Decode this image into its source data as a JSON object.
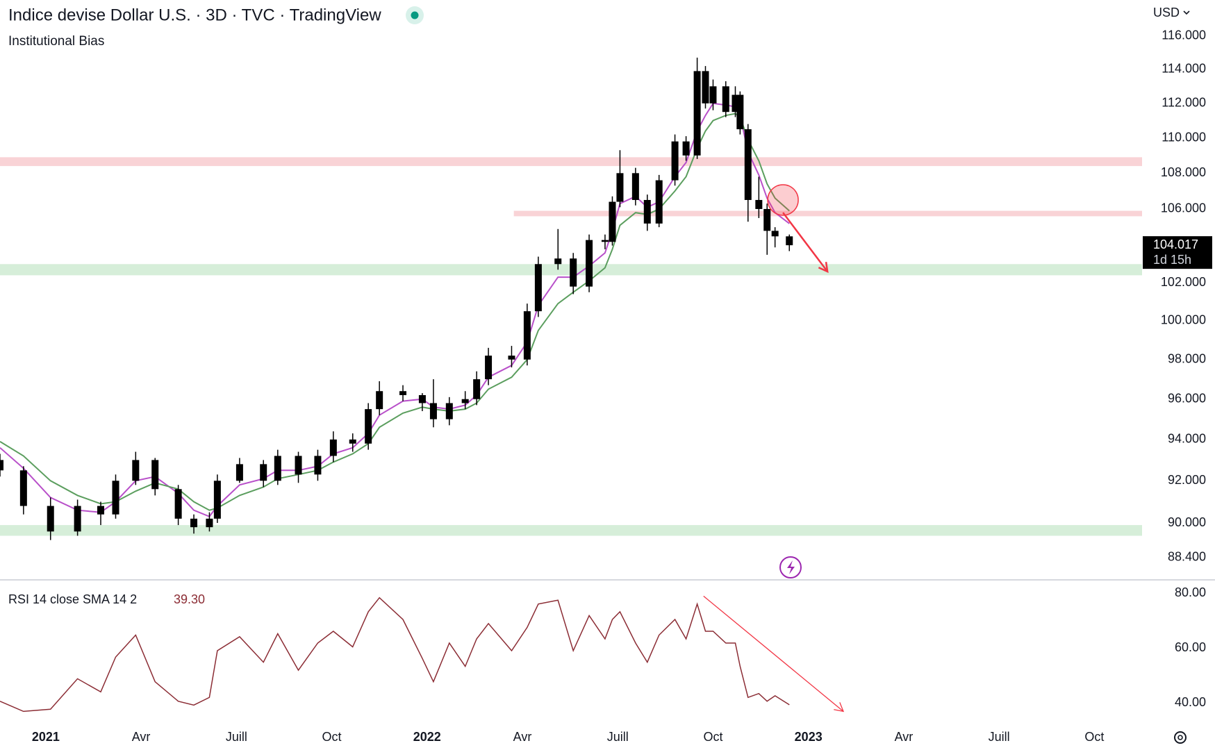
{
  "chart_data": [
    {
      "type": "candlestick",
      "title": "Indice devise Dollar U.S. · 3D · TVC · TradingView",
      "subtitle": "Institutional Bias",
      "currency": "USD",
      "countdown": "1d 15h",
      "log_scale": true,
      "grid": false,
      "xlim": [
        -1.44,
        34.5
      ],
      "ylim": [
        87.4,
        118.2
      ],
      "yticks": [
        {
          "value": 116,
          "label": "116.000"
        },
        {
          "value": 114,
          "label": "114.000"
        },
        {
          "value": 112,
          "label": "112.000"
        },
        {
          "value": 110,
          "label": "110.000"
        },
        {
          "value": 108,
          "label": "108.000"
        },
        {
          "value": 106,
          "label": "106.000"
        },
        {
          "value": 102,
          "label": "102.000"
        },
        {
          "value": 100,
          "label": "100.000"
        },
        {
          "value": 98,
          "label": "98.000"
        },
        {
          "value": 96,
          "label": "96.000"
        },
        {
          "value": 94,
          "label": "94.000"
        },
        {
          "value": 92,
          "label": "92.000"
        },
        {
          "value": 90,
          "label": "90.000"
        },
        {
          "value": 88.4,
          "label": "88.400"
        }
      ],
      "color": "#000000",
      "x": [
        -1.44,
        -0.7,
        0.15,
        1,
        1.73,
        2.2,
        2.83,
        3.44,
        4.17,
        4.66,
        5.15,
        5.4,
        6.1,
        6.85,
        7.3,
        7.95,
        8.56,
        9.05,
        9.66,
        10.15,
        10.5,
        11.24,
        11.85,
        12.2,
        12.7,
        13.2,
        13.56,
        13.93,
        14.66,
        15.15,
        15.5,
        16.12,
        16.6,
        17.1,
        17.6,
        17.83,
        18.07,
        18.56,
        18.93,
        19.3,
        19.8,
        20.15,
        20.5,
        20.76,
        21,
        21.4,
        21.7,
        21.85,
        22.1,
        22.44,
        22.7,
        22.95,
        23.4
      ],
      "open": [
        93.0,
        92.5,
        90.8,
        89.6,
        90.8,
        90.4,
        92.0,
        93.0,
        91.6,
        90.2,
        89.8,
        90.2,
        92.0,
        92.8,
        92.0,
        93.2,
        92.3,
        93.2,
        94.0,
        93.8,
        95.5,
        96.4,
        96.2,
        95.8,
        95.0,
        95.8,
        96.0,
        97.0,
        98.2,
        98.0,
        100.5,
        103.0,
        103.3,
        101.8,
        104.3,
        104.2,
        106.4,
        108.0,
        106.5,
        105.2,
        107.6,
        109.8,
        109.0,
        113.9,
        112.0,
        113.0,
        111.5,
        112.5,
        110.5,
        106.5,
        106.0,
        104.8,
        104.5
      ],
      "high": [
        93.3,
        92.7,
        91.2,
        91.1,
        91.0,
        92.3,
        93.4,
        93.1,
        91.8,
        90.4,
        90.5,
        92.3,
        93.1,
        93.0,
        93.5,
        93.4,
        93.5,
        94.4,
        94.3,
        95.8,
        96.9,
        96.7,
        96.3,
        97.0,
        96.1,
        96.4,
        97.4,
        98.6,
        98.7,
        100.9,
        103.4,
        104.9,
        103.6,
        104.6,
        104.6,
        106.7,
        109.3,
        108.3,
        106.8,
        107.9,
        110.2,
        110.1,
        114.7,
        114.2,
        113.4,
        113.3,
        113.0,
        112.7,
        110.8,
        107.8,
        106.3,
        105.0,
        104.6
      ],
      "low": [
        92.2,
        90.4,
        89.2,
        89.4,
        89.9,
        90.2,
        91.8,
        91.3,
        89.9,
        89.5,
        89.6,
        90.0,
        91.9,
        91.7,
        91.8,
        91.9,
        92.0,
        92.9,
        93.4,
        93.5,
        95.2,
        95.9,
        95.4,
        94.6,
        94.7,
        95.5,
        95.7,
        96.7,
        97.6,
        97.7,
        100.2,
        102.7,
        101.4,
        101.5,
        103.8,
        104.0,
        106.1,
        106.2,
        104.8,
        105.0,
        107.3,
        108.7,
        108.8,
        111.7,
        111.6,
        111.2,
        111.2,
        110.2,
        105.3,
        105.5,
        103.5,
        103.9,
        103.7
      ],
      "close": [
        92.5,
        90.8,
        89.6,
        90.8,
        90.4,
        92.0,
        93.0,
        91.6,
        90.2,
        89.8,
        90.2,
        92.0,
        92.8,
        92.0,
        93.2,
        92.3,
        93.2,
        94.0,
        93.8,
        95.5,
        96.4,
        96.2,
        95.8,
        95.0,
        95.8,
        96.0,
        97.0,
        98.2,
        98.0,
        100.5,
        103.0,
        103.3,
        101.8,
        104.3,
        104.2,
        106.4,
        108.0,
        106.5,
        105.2,
        107.6,
        109.8,
        109.0,
        113.9,
        112.0,
        113.0,
        111.5,
        112.5,
        110.5,
        106.5,
        106.0,
        104.8,
        104.5,
        104.017
      ],
      "series": [
        {
          "color": "#b84fc9",
          "values": [
            93.6,
            92.6,
            91.2,
            90.6,
            90.5,
            91.0,
            92.0,
            92.2,
            91.4,
            90.6,
            90.3,
            90.8,
            91.8,
            92.1,
            92.5,
            92.5,
            92.7,
            93.3,
            93.6,
            94.3,
            95.2,
            95.9,
            96.0,
            95.6,
            95.5,
            95.7,
            96.2,
            97.1,
            97.7,
            98.9,
            100.8,
            102.3,
            102.3,
            102.9,
            103.6,
            104.8,
            106.3,
            106.7,
            106.1,
            106.4,
            107.8,
            108.6,
            110.4,
            111.3,
            112.0,
            111.9,
            111.8,
            111.3,
            109.2,
            107.9,
            106.6,
            105.8,
            105.2
          ]
        },
        {
          "color": "#5b9e5e",
          "values": [
            93.9,
            93.2,
            92.0,
            91.3,
            90.9,
            91.0,
            91.5,
            91.9,
            91.6,
            91.0,
            90.6,
            90.7,
            91.3,
            91.7,
            92.1,
            92.3,
            92.5,
            92.9,
            93.3,
            93.8,
            94.6,
            95.3,
            95.6,
            95.5,
            95.4,
            95.5,
            95.8,
            96.5,
            97.1,
            98.0,
            99.5,
            100.9,
            101.5,
            102.1,
            102.8,
            103.8,
            105.1,
            105.8,
            105.7,
            106.0,
            107.0,
            107.8,
            109.4,
            110.4,
            111.0,
            111.3,
            111.4,
            111.2,
            109.9,
            108.7,
            107.4,
            106.6,
            105.9
          ]
        }
      ],
      "zones": [
        {
          "low": 108.4,
          "high": 108.9,
          "color": "#f9d3d6"
        },
        {
          "low": 105.6,
          "high": 105.9,
          "color": "#f9d3d6",
          "x_from": 14.73
        },
        {
          "low": 102.4,
          "high": 103.0,
          "color": "#d6eed9"
        },
        {
          "low": 89.4,
          "high": 89.9,
          "color": "#d6eed9"
        }
      ],
      "annotations": [
        {
          "kind": "circle",
          "x": 23.2,
          "y": 106.5,
          "color": "#f23645"
        },
        {
          "kind": "arrow",
          "x": [
            23.2,
            24.6
          ],
          "y": [
            105.8,
            102.6
          ],
          "color": "#f23645"
        }
      ]
    },
    {
      "type": "line",
      "title": "RSI 14 close SMA 14 2",
      "color": "#8b2c34",
      "xlim": [
        -1.44,
        34.5
      ],
      "ylim": [
        32.2,
        84.3
      ],
      "yticks": [
        {
          "value": 80,
          "label": "80.00"
        },
        {
          "value": 60,
          "label": "60.00"
        },
        {
          "value": 40,
          "label": "40.00"
        }
      ],
      "xticks": [
        {
          "value": 0,
          "label": "2021"
        },
        {
          "value": 3,
          "label": "Avr"
        },
        {
          "value": 6,
          "label": "Juill"
        },
        {
          "value": 9,
          "label": "Oct"
        },
        {
          "value": 12,
          "label": "2022"
        },
        {
          "value": 15,
          "label": "Avr"
        },
        {
          "value": 18,
          "label": "Juill"
        },
        {
          "value": 21,
          "label": "Oct"
        },
        {
          "value": 24,
          "label": "2023"
        },
        {
          "value": 27,
          "label": "Avr"
        },
        {
          "value": 30,
          "label": "Juill"
        },
        {
          "value": 33,
          "label": "Oct"
        }
      ],
      "x": [
        -1.44,
        -0.7,
        0.15,
        1,
        1.73,
        2.2,
        2.83,
        3.44,
        4.17,
        4.66,
        5.15,
        5.4,
        6.1,
        6.85,
        7.3,
        7.95,
        8.56,
        9.05,
        9.66,
        10.15,
        10.5,
        11.24,
        11.85,
        12.2,
        12.7,
        13.2,
        13.56,
        13.93,
        14.66,
        15.15,
        15.5,
        16.12,
        16.6,
        17.1,
        17.6,
        17.83,
        18.07,
        18.56,
        18.93,
        19.3,
        19.8,
        20.15,
        20.5,
        20.76,
        21,
        21.4,
        21.7,
        21.85,
        22.1,
        22.44,
        22.7,
        22.95,
        23.4
      ],
      "values": [
        40.6,
        36.9,
        37.7,
        48.8,
        44,
        56.7,
        64.7,
        47.7,
        40.6,
        39.2,
        42,
        59,
        64.1,
        54.8,
        65.2,
        51.9,
        61.8,
        66.1,
        60.4,
        73.2,
        78.3,
        70.4,
        56.2,
        47.7,
        61.8,
        53.3,
        63.3,
        68.9,
        59,
        67.5,
        76,
        77.4,
        59,
        71.8,
        63.3,
        70.4,
        73.2,
        61.8,
        54.8,
        64.7,
        70.4,
        63.3,
        76,
        66.1,
        66.1,
        61.8,
        61.8,
        53.3,
        42,
        43.4,
        40.6,
        42.6,
        39.3
      ],
      "last_value_label": "39.30",
      "annotations": [
        {
          "kind": "arrow",
          "x": [
            20.7,
            25.1
          ],
          "y": [
            78.9,
            36.9
          ],
          "color": "#f23645"
        }
      ]
    }
  ]
}
